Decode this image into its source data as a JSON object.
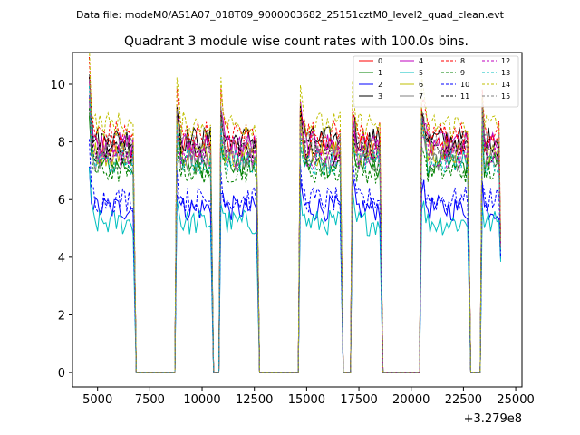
{
  "chart_data": {
    "type": "line",
    "suptitle": "Data file: modeM0/AS1A07_018T09_9000003682_25151cztM0_level2_quad_clean.evt",
    "title": "Quadrant 3 module wise count rates with 100.0s bins.",
    "xlabel": "",
    "ylabel": "",
    "x_offset_label": "+3.279e8",
    "xlim": [
      3800,
      25300
    ],
    "ylim": [
      -0.5,
      11.1
    ],
    "x_ticks": [
      5000,
      7500,
      10000,
      12500,
      15000,
      17500,
      20000,
      22500,
      25000
    ],
    "x_tick_labels": [
      "5000",
      "7500",
      "10000",
      "12500",
      "15000",
      "17500",
      "20000",
      "22500",
      "25000"
    ],
    "y_ticks": [
      0,
      2,
      4,
      6,
      8,
      10
    ],
    "y_tick_labels": [
      "0",
      "2",
      "4",
      "6",
      "8",
      "10"
    ],
    "legend_position": "top-right",
    "segments": [
      {
        "start": 4600,
        "end": 6700
      },
      {
        "start": 8800,
        "end": 10400
      },
      {
        "start": 10900,
        "end": 12600
      },
      {
        "start": 14700,
        "end": 16600
      },
      {
        "start": 17200,
        "end": 18500
      },
      {
        "start": 20500,
        "end": 22700
      },
      {
        "start": 23400,
        "end": 24200
      }
    ],
    "series": [
      {
        "name": "0",
        "level": 7.8,
        "color": "#ff0000",
        "dash": "solid"
      },
      {
        "name": "1",
        "level": 7.2,
        "color": "#008000",
        "dash": "solid"
      },
      {
        "name": "2",
        "level": 5.7,
        "color": "#0000ff",
        "dash": "solid"
      },
      {
        "name": "3",
        "level": 8.1,
        "color": "#000000",
        "dash": "solid"
      },
      {
        "name": "4",
        "level": 7.9,
        "color": "#bf00bf",
        "dash": "solid"
      },
      {
        "name": "5",
        "level": 5.2,
        "color": "#00bfbf",
        "dash": "solid"
      },
      {
        "name": "6",
        "level": 7.6,
        "color": "#bfbf00",
        "dash": "solid"
      },
      {
        "name": "7",
        "level": 7.4,
        "color": "#808080",
        "dash": "solid"
      },
      {
        "name": "8",
        "level": 8.3,
        "color": "#ff0000",
        "dash": "dashed"
      },
      {
        "name": "9",
        "level": 7.0,
        "color": "#008000",
        "dash": "dashed"
      },
      {
        "name": "10",
        "level": 6.0,
        "color": "#0000ff",
        "dash": "dashed"
      },
      {
        "name": "11",
        "level": 7.7,
        "color": "#000000",
        "dash": "dashed"
      },
      {
        "name": "12",
        "level": 7.5,
        "color": "#bf00bf",
        "dash": "dashed"
      },
      {
        "name": "13",
        "level": 7.3,
        "color": "#00bfbf",
        "dash": "dashed"
      },
      {
        "name": "14",
        "level": 8.6,
        "color": "#bfbf00",
        "dash": "dashed"
      },
      {
        "name": "15",
        "level": 7.9,
        "color": "#808080",
        "dash": "dashed"
      }
    ]
  }
}
